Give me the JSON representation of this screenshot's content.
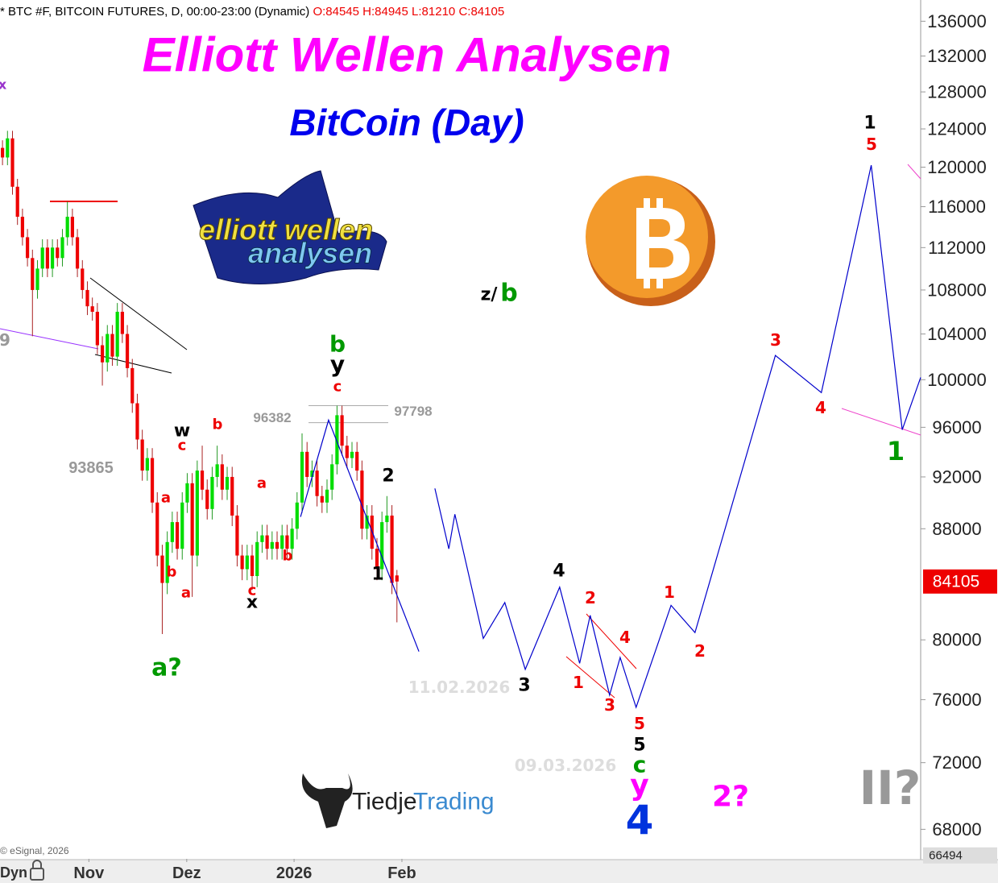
{
  "chart_data": {
    "type": "candlestick",
    "title": "Elliott Wellen Analysen",
    "subtitle": "BitCoin (Day)",
    "header": "* BTC #F, BITCOIN FUTURES, D, 00:00-23:00 (Dynamic)",
    "header_values": [
      "O:84545",
      "H:84945",
      "L:81210",
      "C:84105"
    ],
    "copyright": "© eSignal, 2026",
    "footer_left": "Dyn",
    "logos": [
      "elliott wellen",
      "analysen",
      "Tiedje",
      "Trading"
    ],
    "log_scale": true,
    "ylim": [
      66300,
      138500
    ],
    "yticks": [
      68000,
      72000,
      76000,
      80000,
      88000,
      92000,
      96000,
      100000,
      104000,
      108000,
      112000,
      116000,
      120000,
      124000,
      128000,
      132000,
      136000
    ],
    "xlim": [
      -0.5,
      183.9
    ],
    "xticks": [
      {
        "value": 17.3,
        "label": "Nov"
      },
      {
        "value": 36.9,
        "label": "Dez"
      },
      {
        "value": 58.4,
        "label": "2026"
      },
      {
        "value": 80,
        "label": "Feb"
      }
    ],
    "up_color": "#00dd00",
    "down_color": "#ee0000",
    "x": [
      0,
      1,
      2,
      3,
      4,
      5,
      6,
      7,
      8,
      9,
      10,
      11,
      12,
      13,
      14,
      15,
      16,
      17,
      18,
      19,
      20,
      21,
      22,
      23,
      24,
      25,
      26,
      27,
      28,
      29,
      30,
      31,
      32,
      33,
      34,
      35,
      36,
      37,
      38,
      39,
      40,
      41,
      42,
      43,
      44,
      45,
      46,
      47,
      48,
      49,
      50,
      51,
      52,
      53,
      54,
      55,
      56,
      57,
      58,
      59,
      60,
      61,
      62,
      63,
      64,
      65,
      66,
      67,
      68,
      69,
      70,
      71,
      72,
      73,
      74,
      75,
      76,
      77,
      78,
      79
    ],
    "open": [
      122000,
      121000,
      123000,
      118000,
      115000,
      113000,
      111000,
      108000,
      110000,
      112000,
      110000,
      112000,
      111000,
      113000,
      115000,
      113000,
      110000,
      108000,
      106500,
      106000,
      103000,
      101500,
      104000,
      102000,
      106000,
      104000,
      101000,
      98000,
      95000,
      92500,
      93500,
      90000,
      86000,
      84000,
      87000,
      88500,
      86500,
      90000,
      91500,
      86000,
      92500,
      91000,
      89500,
      92000,
      93000,
      91000,
      92000,
      89000,
      86000,
      85000,
      86000,
      84500,
      87000,
      87500,
      86500,
      87000,
      86500,
      87500,
      86500,
      88000,
      90000,
      94000,
      92000,
      92500,
      90500,
      90000,
      91000,
      93000,
      97000,
      94500,
      93500,
      94000,
      92500,
      88000,
      89000,
      86500,
      85000,
      88500,
      89000,
      84545
    ],
    "high": [
      122800,
      123800,
      123800,
      118800,
      115800,
      113800,
      111800,
      110800,
      112800,
      112800,
      112800,
      112800,
      113800,
      116500,
      115800,
      113800,
      110800,
      108800,
      107300,
      106800,
      103800,
      104800,
      104800,
      106800,
      106800,
      104800,
      101800,
      98800,
      95800,
      94300,
      94300,
      90800,
      86800,
      87800,
      89300,
      89300,
      90800,
      92300,
      92300,
      93300,
      94500,
      91800,
      92800,
      94500,
      93800,
      92800,
      92800,
      89800,
      86800,
      86800,
      86800,
      87800,
      88300,
      88300,
      87800,
      87800,
      88300,
      88300,
      88800,
      90800,
      95500,
      94800,
      93300,
      93300,
      91300,
      91800,
      93800,
      97800,
      97800,
      95300,
      94800,
      94800,
      93300,
      89800,
      89800,
      87300,
      89300,
      90500,
      89800,
      84945
    ],
    "low": [
      120200,
      120200,
      117200,
      114200,
      112200,
      110200,
      103800,
      107200,
      109200,
      109200,
      109200,
      110200,
      110200,
      112200,
      112200,
      109200,
      107200,
      105700,
      105200,
      102200,
      99500,
      100700,
      101200,
      101200,
      103200,
      100200,
      97200,
      94200,
      91700,
      91700,
      89200,
      85200,
      80400,
      83200,
      86200,
      85700,
      85700,
      89200,
      83000,
      85200,
      90200,
      88700,
      88700,
      91200,
      90200,
      90200,
      88200,
      85200,
      84200,
      84200,
      83500,
      83700,
      86200,
      85700,
      85700,
      85700,
      85700,
      85700,
      85700,
      87200,
      89200,
      91200,
      91200,
      89700,
      89200,
      89200,
      90200,
      92200,
      93700,
      92700,
      92700,
      91700,
      87200,
      87200,
      85700,
      84200,
      84200,
      87700,
      83200,
      81210
    ],
    "close": [
      121000,
      123000,
      118000,
      115000,
      113000,
      111000,
      108000,
      110000,
      112000,
      110000,
      112000,
      111000,
      113000,
      115000,
      113000,
      110000,
      108000,
      106500,
      106000,
      103000,
      101500,
      104000,
      102000,
      106000,
      104000,
      101000,
      98000,
      95000,
      92500,
      93500,
      90000,
      86000,
      84000,
      87000,
      88500,
      86500,
      90000,
      91500,
      86000,
      92500,
      91000,
      89500,
      92000,
      93000,
      91000,
      92000,
      89000,
      86000,
      85000,
      86000,
      84500,
      87000,
      87500,
      86500,
      87000,
      86500,
      87500,
      86500,
      88000,
      90000,
      94000,
      92000,
      92500,
      90500,
      90000,
      91000,
      93000,
      97000,
      94500,
      93500,
      94000,
      92500,
      88000,
      89000,
      86500,
      85000,
      88500,
      89000,
      84000,
      84105
    ],
    "projection": {
      "color": "#0000cc",
      "x": [
        59.7,
        65.3,
        83.4,
        null,
        86.6,
        89.4,
        90.6,
        96.3,
        100.6,
        104.7,
        111.6,
        115.6,
        117.7,
        121.6,
        123.7,
        126.9,
        133.9,
        138.7,
        154.8,
        164.0,
        174.0,
        180.2,
        183.9
      ],
      "values": [
        88900,
        96600,
        79200,
        null,
        91100,
        86500,
        89100,
        80100,
        82600,
        78000,
        83700,
        78400,
        81700,
        76300,
        78800,
        75500,
        82400,
        80500,
        102100,
        98900,
        120200,
        95800,
        100200
      ]
    },
    "last_price": 84105,
    "bottom_readout": 66494,
    "level_labels": [
      93865,
      96382,
      97798
    ],
    "annotations": [
      {
        "text": "x",
        "color": "#9933cc"
      },
      {
        "text": "9",
        "color": "#999999"
      },
      {
        "text": "b",
        "color": "#009900"
      },
      {
        "text": "y",
        "color": "#000000"
      },
      {
        "text": "c",
        "color": "#ee0000"
      },
      {
        "text": "w",
        "color": "#000000"
      },
      {
        "text": "c",
        "color": "#ee0000"
      },
      {
        "text": "b",
        "color": "#ee0000"
      },
      {
        "text": "a",
        "color": "#ee0000"
      },
      {
        "text": "b",
        "color": "#ee0000"
      },
      {
        "text": "a",
        "color": "#ee0000"
      },
      {
        "text": "a",
        "color": "#ee0000"
      },
      {
        "text": "b",
        "color": "#ee0000"
      },
      {
        "text": "c",
        "color": "#ee0000"
      },
      {
        "text": "x",
        "color": "#000000"
      },
      {
        "text": "2",
        "color": "#000000"
      },
      {
        "text": "1",
        "color": "#000000"
      },
      {
        "text": "a?",
        "color": "#009900"
      },
      {
        "text": "z/",
        "color": "#000000"
      },
      {
        "text": "b",
        "color": "#009900"
      },
      {
        "text": "11.02.2026",
        "color": "#dddddd"
      },
      {
        "text": "3",
        "color": "#000000"
      },
      {
        "text": "4",
        "color": "#000000"
      },
      {
        "text": "2",
        "color": "#ee0000"
      },
      {
        "text": "4",
        "color": "#ee0000"
      },
      {
        "text": "1",
        "color": "#ee0000"
      },
      {
        "text": "3",
        "color": "#ee0000"
      },
      {
        "text": "5",
        "color": "#ee0000"
      },
      {
        "text": "5",
        "color": "#000000"
      },
      {
        "text": "c",
        "color": "#009900"
      },
      {
        "text": "y",
        "color": "#ff00ff"
      },
      {
        "text": "4",
        "color": "#0033dd"
      },
      {
        "text": "1",
        "color": "#ee0000"
      },
      {
        "text": "2",
        "color": "#ee0000"
      },
      {
        "text": "3",
        "color": "#ee0000"
      },
      {
        "text": "4",
        "color": "#ee0000"
      },
      {
        "text": "1",
        "color": "#000000"
      },
      {
        "text": "5",
        "color": "#ee0000"
      },
      {
        "text": "1",
        "color": "#009900"
      },
      {
        "text": "09.03.2026",
        "color": "#dddddd"
      },
      {
        "text": "2?",
        "color": "#ff00ff"
      },
      {
        "text": "II?",
        "color": "#999999"
      }
    ]
  }
}
